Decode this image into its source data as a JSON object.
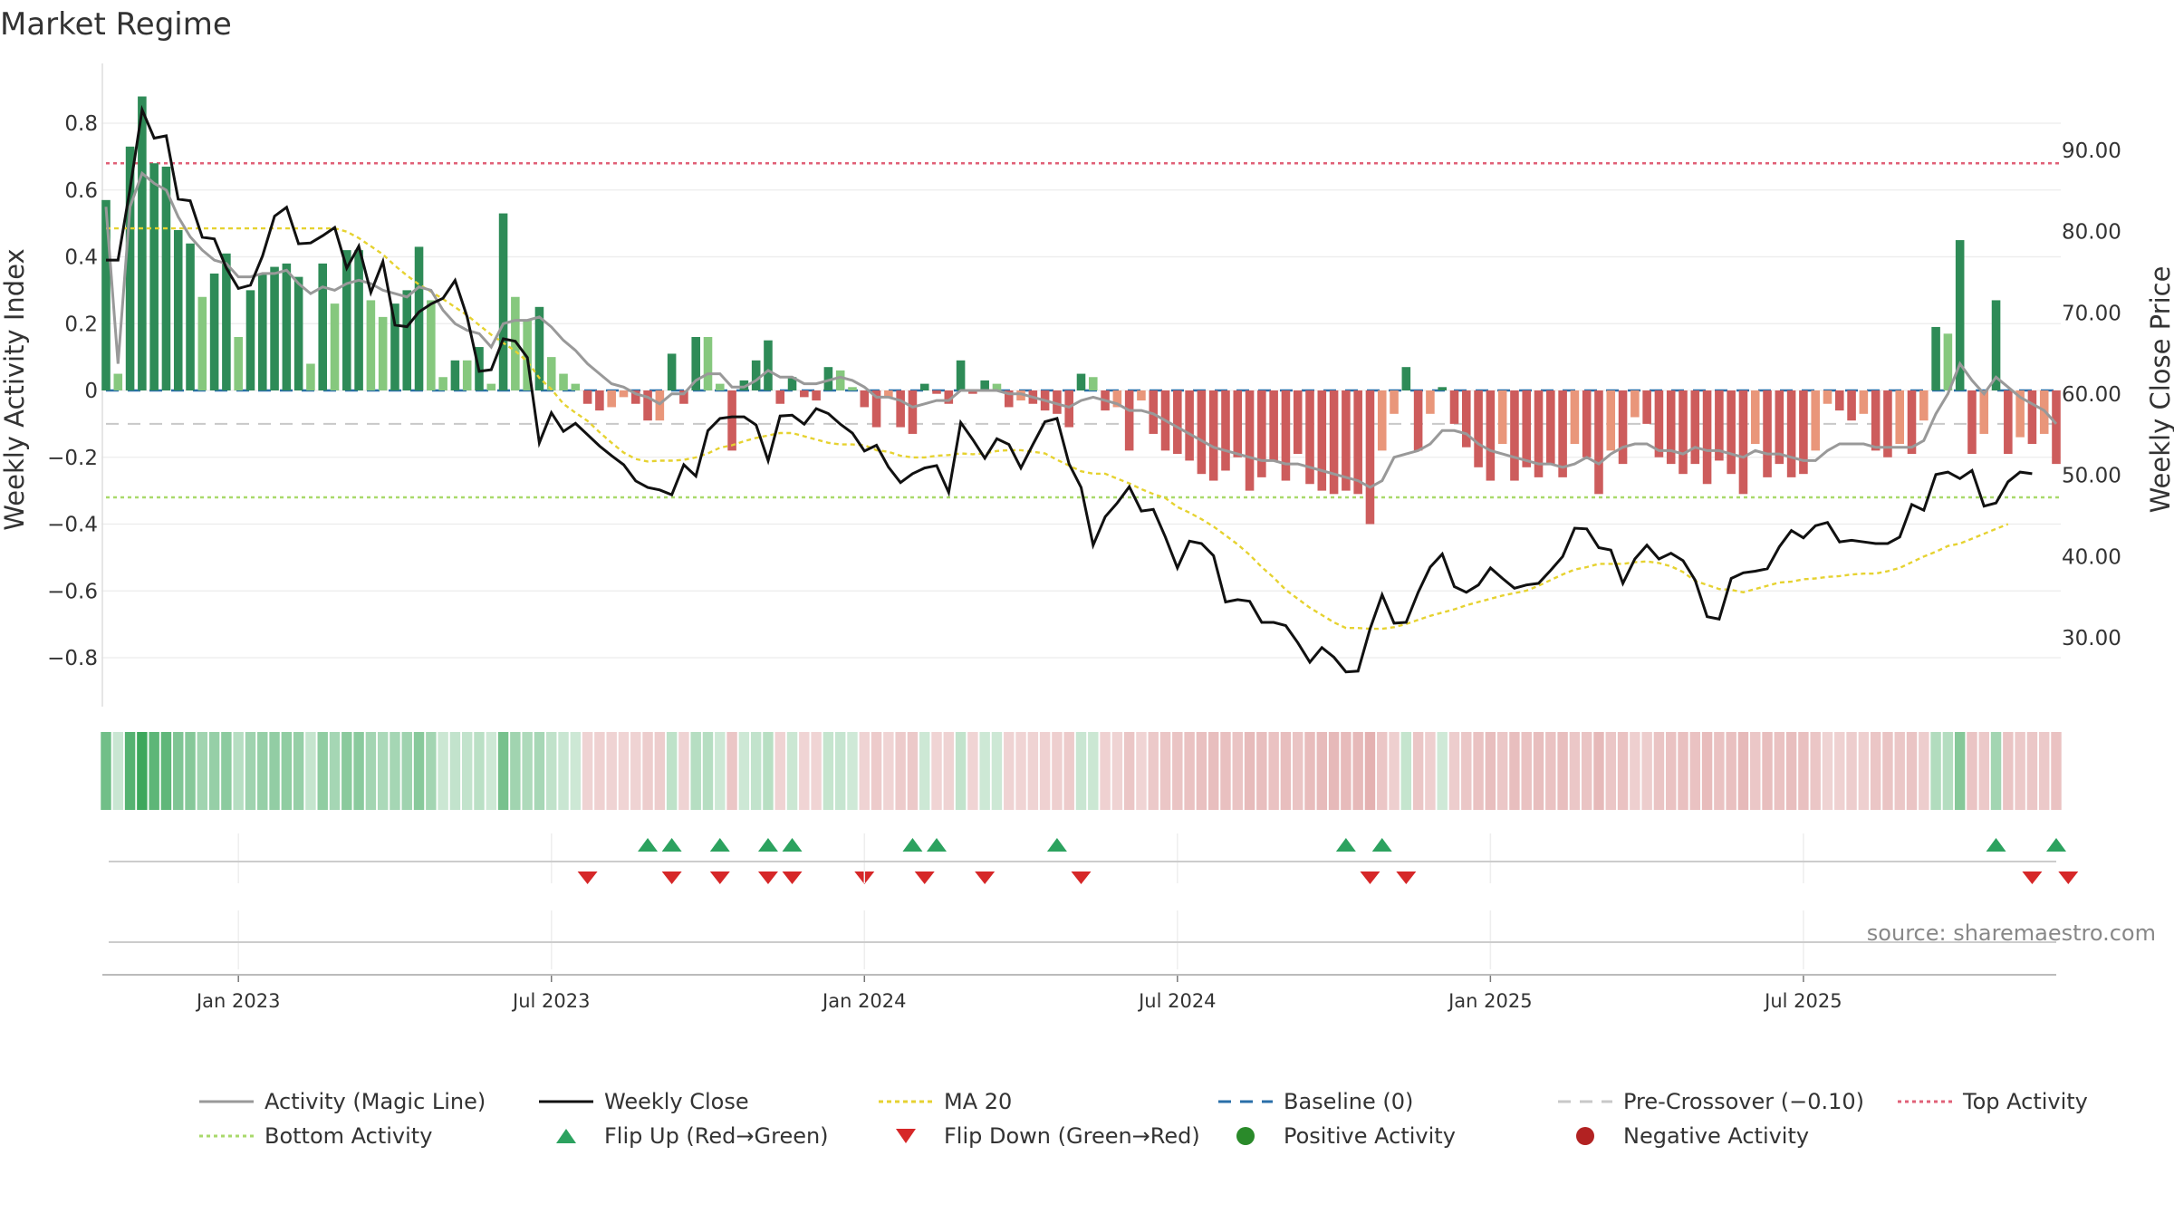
{
  "chart_data": {
    "type": "bar",
    "title": "Market Regime",
    "ylabel": "Weekly Activity Index",
    "y2label": "Weekly Close Price",
    "source": "source: sharemaestro.com",
    "ylim": [
      -0.95,
      0.95
    ],
    "y2lim": [
      20.5,
      100.5
    ],
    "yticks": [
      "0.8",
      "0.6",
      "0.4",
      "0.2",
      "0",
      "−0.2",
      "−0.4",
      "−0.6",
      "−0.8"
    ],
    "y2ticks": [
      "90.00",
      "80.00",
      "70.00",
      "60.00",
      "50.00",
      "40.00",
      "30.00"
    ],
    "xticks": [
      "Jan 2023",
      "Jul 2023",
      "Jan 2024",
      "Jul 2024",
      "Jan 2025",
      "Jul 2025"
    ],
    "grid": true,
    "legend_position": "bottom",
    "top_activity": 0.68,
    "bottom_activity": -0.32,
    "baseline": 0,
    "pre_crossover": -0.1,
    "activity": [
      0.57,
      0.05,
      0.73,
      0.88,
      0.68,
      0.67,
      0.48,
      0.44,
      0.28,
      0.35,
      0.41,
      0.16,
      0.3,
      0.35,
      0.37,
      0.38,
      0.34,
      0.08,
      0.38,
      0.26,
      0.42,
      0.42,
      0.27,
      0.22,
      0.26,
      0.3,
      0.43,
      0.27,
      0.04,
      0.09,
      0.09,
      0.13,
      0.02,
      0.53,
      0.28,
      0.21,
      0.25,
      0.1,
      0.05,
      0.02,
      -0.04,
      -0.06,
      -0.05,
      -0.02,
      -0.04,
      -0.09,
      -0.09,
      0.11,
      -0.04,
      0.16,
      0.16,
      0.02,
      -0.18,
      0.03,
      0.09,
      0.15,
      -0.04,
      0.04,
      -0.02,
      -0.03,
      0.07,
      0.06,
      0.01,
      -0.05,
      -0.11,
      -0.02,
      -0.11,
      -0.13,
      0.02,
      -0.01,
      -0.04,
      0.09,
      -0.01,
      0.03,
      0.02,
      -0.05,
      -0.03,
      -0.04,
      -0.06,
      -0.07,
      -0.11,
      0.05,
      0.04,
      -0.06,
      -0.05,
      -0.18,
      -0.03,
      -0.13,
      -0.18,
      -0.19,
      -0.21,
      -0.25,
      -0.27,
      -0.24,
      -0.2,
      -0.3,
      -0.26,
      -0.21,
      -0.27,
      -0.19,
      -0.28,
      -0.3,
      -0.31,
      -0.3,
      -0.31,
      -0.4,
      -0.18,
      -0.07,
      0.07,
      -0.18,
      -0.07,
      0.01,
      -0.1,
      -0.17,
      -0.23,
      -0.27,
      -0.16,
      -0.27,
      -0.23,
      -0.26,
      -0.22,
      -0.26,
      -0.16,
      -0.2,
      -0.31,
      -0.18,
      -0.22,
      -0.08,
      -0.1,
      -0.2,
      -0.22,
      -0.25,
      -0.22,
      -0.28,
      -0.21,
      -0.25,
      -0.31,
      -0.16,
      -0.26,
      -0.22,
      -0.26,
      -0.25,
      -0.18,
      -0.04,
      -0.06,
      -0.09,
      -0.07,
      -0.18,
      -0.2,
      -0.16,
      -0.19,
      -0.09,
      0.19,
      0.17,
      0.45,
      -0.19,
      -0.13,
      0.27,
      -0.19,
      -0.14,
      -0.16,
      -0.13,
      -0.22
    ],
    "magic_line": [
      0.55,
      0.08,
      0.55,
      0.65,
      0.62,
      0.6,
      0.52,
      0.46,
      0.42,
      0.39,
      0.38,
      0.34,
      0.34,
      0.35,
      0.35,
      0.36,
      0.32,
      0.29,
      0.31,
      0.3,
      0.32,
      0.33,
      0.32,
      0.3,
      0.29,
      0.28,
      0.31,
      0.3,
      0.24,
      0.2,
      0.18,
      0.17,
      0.13,
      0.2,
      0.21,
      0.21,
      0.22,
      0.19,
      0.15,
      0.12,
      0.08,
      0.05,
      0.02,
      0.01,
      -0.01,
      -0.02,
      -0.04,
      -0.01,
      -0.01,
      0.03,
      0.05,
      0.05,
      0.01,
      0.01,
      0.03,
      0.06,
      0.04,
      0.04,
      0.02,
      0.02,
      0.03,
      0.04,
      0.03,
      0.01,
      -0.02,
      -0.02,
      -0.03,
      -0.05,
      -0.04,
      -0.03,
      -0.03,
      0.0,
      -0.0,
      -0.0,
      0.0,
      -0.01,
      -0.01,
      -0.02,
      -0.03,
      -0.04,
      -0.05,
      -0.03,
      -0.02,
      -0.03,
      -0.04,
      -0.06,
      -0.06,
      -0.07,
      -0.09,
      -0.11,
      -0.13,
      -0.15,
      -0.17,
      -0.18,
      -0.19,
      -0.2,
      -0.21,
      -0.21,
      -0.22,
      -0.22,
      -0.23,
      -0.24,
      -0.25,
      -0.26,
      -0.27,
      -0.29,
      -0.27,
      -0.2,
      -0.19,
      -0.18,
      -0.16,
      -0.12,
      -0.12,
      -0.13,
      -0.16,
      -0.18,
      -0.19,
      -0.2,
      -0.21,
      -0.22,
      -0.22,
      -0.23,
      -0.22,
      -0.2,
      -0.22,
      -0.19,
      -0.17,
      -0.16,
      -0.16,
      -0.18,
      -0.18,
      -0.19,
      -0.17,
      -0.18,
      -0.18,
      -0.19,
      -0.2,
      -0.18,
      -0.19,
      -0.19,
      -0.2,
      -0.21,
      -0.21,
      -0.18,
      -0.16,
      -0.16,
      -0.16,
      -0.17,
      -0.17,
      -0.17,
      -0.17,
      -0.15,
      -0.07,
      -0.01,
      0.08,
      0.03,
      -0.01,
      0.04,
      0.01,
      -0.02,
      -0.04,
      -0.06,
      -0.1
    ],
    "weekly_close": [
      76.5,
      76.5,
      85.3,
      95.0,
      91.5,
      91.8,
      84.0,
      83.8,
      79.3,
      79.1,
      75.5,
      73.0,
      73.4,
      77.0,
      81.9,
      83.0,
      78.5,
      78.6,
      79.5,
      80.5,
      75.5,
      78.2,
      72.5,
      76.3,
      68.5,
      68.3,
      70.1,
      71.1,
      71.8,
      74.0,
      69.5,
      62.8,
      63.0,
      66.8,
      66.5,
      64.5,
      54.0,
      57.7,
      55.4,
      56.4,
      55.0,
      53.6,
      52.4,
      51.3,
      49.3,
      48.5,
      48.2,
      47.6,
      51.3,
      49.9,
      55.5,
      57.0,
      57.2,
      57.2,
      56.2,
      51.8,
      57.3,
      57.4,
      56.3,
      58.2,
      57.6,
      56.3,
      55.2,
      53.0,
      53.7,
      51.0,
      49.1,
      50.2,
      50.9,
      51.2,
      47.9,
      56.5,
      54.4,
      52.1,
      54.5,
      53.8,
      50.9,
      53.8,
      56.6,
      57.0,
      51.4,
      48.5,
      41.4,
      44.9,
      46.6,
      48.6,
      45.6,
      45.8,
      42.4,
      38.6,
      41.9,
      41.6,
      40.1,
      34.4,
      34.7,
      34.5,
      31.9,
      31.9,
      31.5,
      29.4,
      27.0,
      28.8,
      27.6,
      25.8,
      25.9,
      31.1,
      35.3,
      31.8,
      31.9,
      35.6,
      38.7,
      40.3,
      36.3,
      35.6,
      36.5,
      38.6,
      37.3,
      36.1,
      36.5,
      36.7,
      38.3,
      40.0,
      43.5,
      43.4,
      41.1,
      40.8,
      36.7,
      39.7,
      41.4,
      39.7,
      40.4,
      39.5,
      37.1,
      32.6,
      32.3,
      37.3,
      38.0,
      38.2,
      38.5,
      41.2,
      43.2,
      42.3,
      43.8,
      44.2,
      41.8,
      42.0,
      41.8,
      41.6,
      41.6,
      42.4,
      46.4,
      45.7,
      50.1,
      50.4,
      49.6,
      50.6,
      46.2,
      46.6,
      49.2,
      50.4,
      50.2
    ],
    "ma20": [
      80.4,
      80.4,
      80.4,
      80.4,
      80.4,
      80.4,
      80.4,
      80.4,
      80.4,
      80.4,
      80.4,
      80.4,
      80.4,
      80.4,
      80.4,
      80.4,
      80.4,
      80.4,
      80.4,
      80.4,
      80.0,
      79.2,
      78.2,
      77.2,
      75.8,
      74.6,
      73.5,
      72.6,
      71.7,
      70.7,
      69.7,
      68.5,
      67.3,
      66.3,
      65.3,
      64.0,
      62.0,
      60.6,
      58.8,
      57.7,
      56.7,
      55.3,
      54.0,
      52.8,
      52.0,
      51.7,
      51.8,
      51.8,
      51.9,
      52.2,
      52.7,
      53.4,
      53.7,
      54.2,
      54.6,
      54.9,
      55.2,
      55.2,
      54.8,
      54.4,
      54.0,
      53.8,
      53.8,
      53.7,
      53.1,
      52.9,
      52.4,
      52.2,
      52.2,
      52.4,
      52.5,
      52.7,
      52.6,
      52.7,
      53.0,
      53.1,
      53.1,
      52.9,
      52.7,
      51.9,
      51.2,
      50.5,
      50.2,
      50.2,
      49.6,
      49.0,
      48.3,
      47.7,
      47.2,
      46.1,
      45.4,
      44.6,
      43.7,
      42.6,
      41.5,
      40.2,
      38.7,
      37.4,
      35.9,
      34.8,
      33.7,
      32.8,
      31.9,
      31.2,
      31.2,
      31.1,
      31.1,
      31.3,
      31.7,
      32.2,
      32.7,
      33.1,
      33.5,
      34.0,
      34.4,
      34.8,
      35.2,
      35.5,
      35.8,
      36.4,
      37.1,
      37.8,
      38.4,
      38.7,
      39.1,
      39.1,
      39.1,
      39.3,
      39.4,
      39.2,
      38.8,
      38.1,
      37.0,
      36.5,
      36.0,
      35.9,
      35.6,
      36.0,
      36.4,
      36.8,
      36.9,
      37.2,
      37.3,
      37.5,
      37.6,
      37.8,
      37.9,
      37.9,
      38.2,
      38.6,
      39.3,
      40.0,
      40.6,
      41.3,
      41.6,
      42.2,
      42.8,
      43.4,
      44.0
    ],
    "flip_up_weeks": [
      45,
      47,
      51,
      55,
      57,
      67,
      69,
      79,
      103,
      106,
      157,
      162
    ],
    "flip_down_weeks": [
      40,
      47,
      51,
      55,
      57,
      63,
      68,
      73,
      81,
      105,
      108,
      160,
      163
    ],
    "series": [
      {
        "name": "Activity (Magic Line)"
      },
      {
        "name": "Weekly Close"
      },
      {
        "name": "MA 20"
      },
      {
        "name": "Baseline (0)"
      },
      {
        "name": "Pre-Crossover (−0.10)"
      },
      {
        "name": "Top Activity"
      },
      {
        "name": "Bottom Activity"
      },
      {
        "name": "Flip Up (Red→Green)"
      },
      {
        "name": "Flip Down (Green→Red)"
      },
      {
        "name": "Positive Activity"
      },
      {
        "name": "Negative Activity"
      }
    ]
  },
  "colors": {
    "pos_dark": "#2e8b57",
    "pos_light": "#86c87e",
    "neg_dark": "#cd5c5c",
    "neg_light": "#e9967a",
    "close": "#111111",
    "magic": "#999999",
    "ma": "#e6d230",
    "baseline": "#2a6fa8",
    "pre": "#c8c8c8",
    "top": "#e06077",
    "bottom": "#a9d96b",
    "flip_up": "#2ca25f",
    "flip_down": "#d62728",
    "pos_marker": "#2a8a2a",
    "neg_marker": "#b22222"
  }
}
